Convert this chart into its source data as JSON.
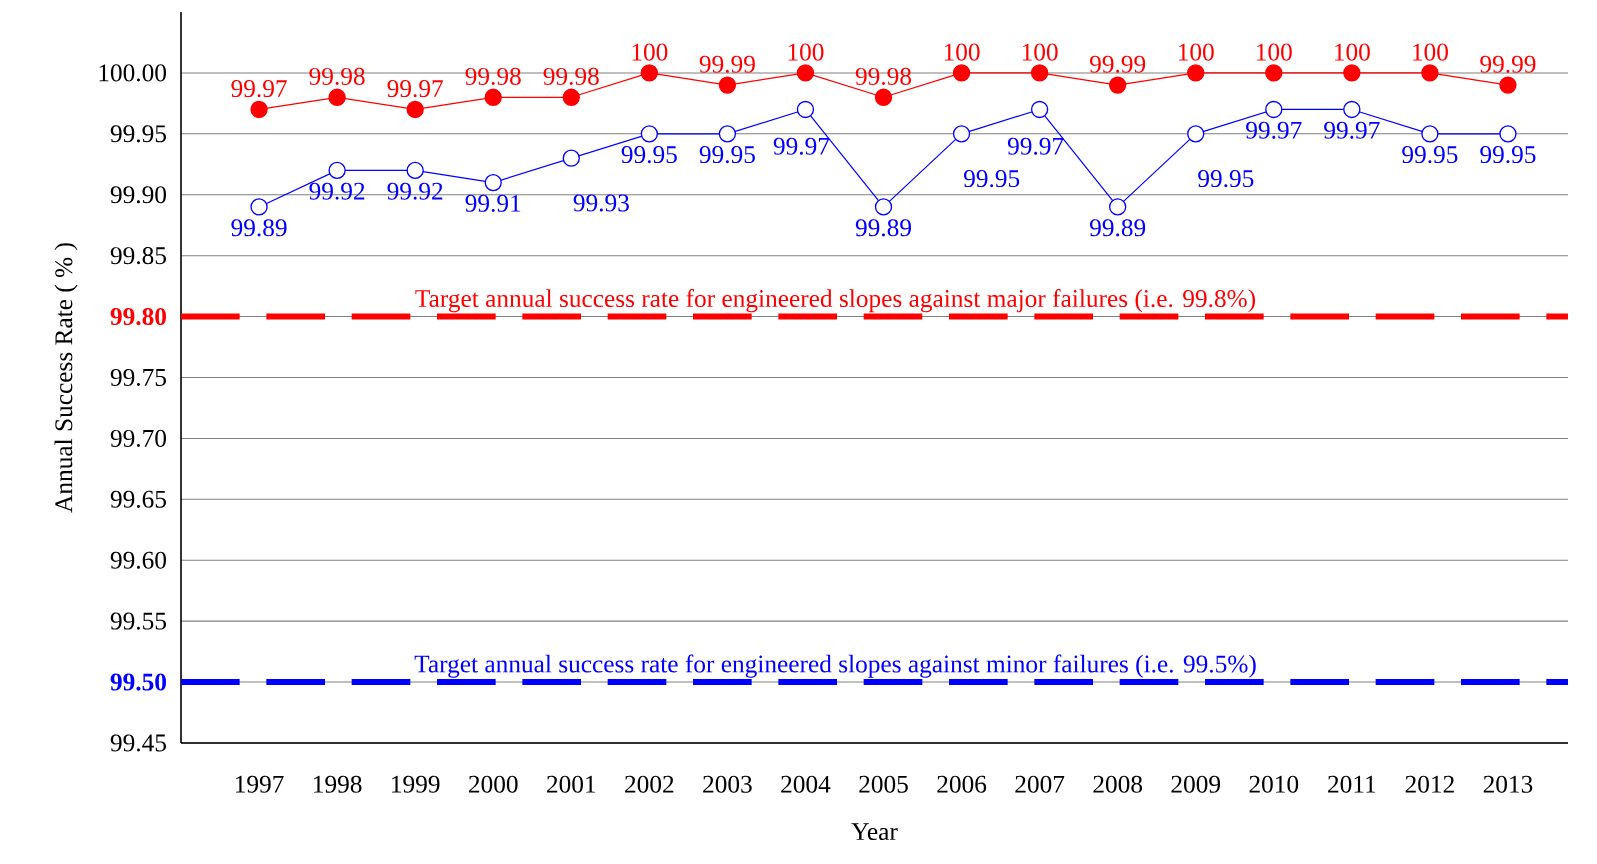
{
  "chart_data": {
    "type": "line",
    "xlabel": "Year",
    "ylabel": "Annual Success Rate ( % )",
    "categories": [
      "1997",
      "1998",
      "1999",
      "2000",
      "2001",
      "2002",
      "2003",
      "2004",
      "2005",
      "2006",
      "2007",
      "2008",
      "2009",
      "2010",
      "2011",
      "2012",
      "2013"
    ],
    "series": [
      {
        "color": "#ff0000",
        "marker": "circle",
        "values": [
          99.97,
          99.98,
          99.97,
          99.98,
          99.98,
          100,
          99.99,
          100,
          99.98,
          100,
          100,
          99.99,
          100,
          100,
          100,
          100,
          99.99
        ],
        "value_labels": [
          "99.97",
          "99.98",
          "99.97",
          "99.98",
          "99.98",
          "100",
          "99.99",
          "100",
          "99.98",
          "100",
          "100",
          "99.99",
          "100",
          "100",
          "100",
          "100",
          "99.99"
        ]
      },
      {
        "color": "#0000ff",
        "marker": "circle",
        "values": [
          99.89,
          99.92,
          99.92,
          99.91,
          99.93,
          99.95,
          99.95,
          99.97,
          99.89,
          99.95,
          99.97,
          99.89,
          99.95,
          99.97,
          99.97,
          99.95,
          99.95
        ],
        "value_labels": [
          "99.89",
          "99.92",
          "99.92",
          "99.91",
          "99.93",
          "99.95",
          "99.95",
          "99.97",
          "99.89",
          "99.95",
          "99.97",
          "99.89",
          "99.95",
          "99.97",
          "99.97",
          "99.95",
          "99.95"
        ]
      }
    ],
    "ylim": [
      99.45,
      100.05
    ],
    "yticks": [
      {
        "value": 99.45,
        "label": "99.45"
      },
      {
        "value": 99.5,
        "label": "99.50"
      },
      {
        "value": 99.55,
        "label": "99.55"
      },
      {
        "value": 99.6,
        "label": "99.60"
      },
      {
        "value": 99.65,
        "label": "99.65"
      },
      {
        "value": 99.7,
        "label": "99.70"
      },
      {
        "value": 99.75,
        "label": "99.75"
      },
      {
        "value": 99.8,
        "label": "99.80"
      },
      {
        "value": 99.85,
        "label": "99.85"
      },
      {
        "value": 99.9,
        "label": "99.90"
      },
      {
        "value": 99.95,
        "label": "99.95"
      },
      {
        "value": 100,
        "label": "100.00"
      }
    ],
    "ref_lines": [
      {
        "axis": "y",
        "value": 99.8,
        "label": "Target annual success rate for engineered slopes against major failures (i.e. 99.8%)",
        "color": "#ff0000",
        "line_style": "dashed"
      },
      {
        "axis": "y",
        "value": 99.5,
        "label": "Target annual success rate for engineered slopes against minor failures (i.e. 99.5%)",
        "color": "#0000ff",
        "line_style": "dashed"
      }
    ],
    "grid": "y"
  }
}
